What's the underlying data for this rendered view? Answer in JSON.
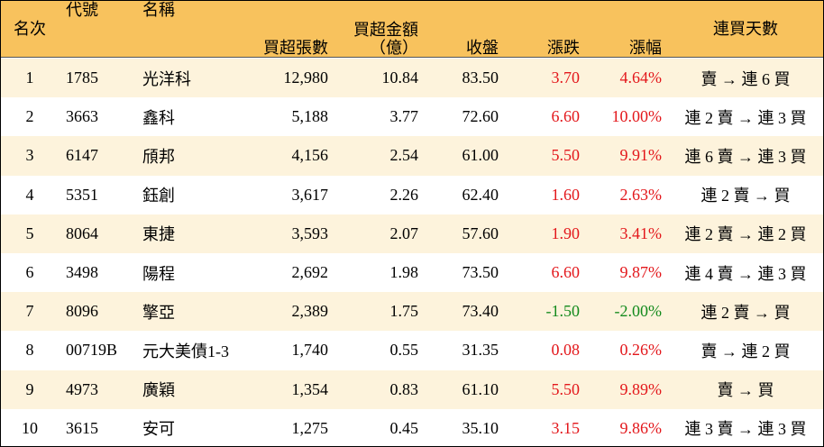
{
  "table": {
    "header": [
      "名次",
      "代號",
      "名稱",
      "買超張數",
      [
        "買超金額",
        "（億）"
      ],
      "收盤",
      "漲跌",
      "漲幅",
      "連買天數"
    ],
    "rows": [
      [
        "1",
        "1785",
        "光洋科",
        "12,980",
        "10.84",
        "83.50",
        "3.70",
        "4.64%",
        "賣 → 連 6 買"
      ],
      [
        "2",
        "3663",
        "鑫科",
        "5,188",
        "3.77",
        "72.60",
        "6.60",
        "10.00%",
        "連 2 賣 → 連 3 買"
      ],
      [
        "3",
        "6147",
        "頎邦",
        "4,156",
        "2.54",
        "61.00",
        "5.50",
        "9.91%",
        "連 6 賣 → 連 3 買"
      ],
      [
        "4",
        "5351",
        "鈺創",
        "3,617",
        "2.26",
        "62.40",
        "1.60",
        "2.63%",
        "連 2 賣 → 買"
      ],
      [
        "5",
        "8064",
        "東捷",
        "3,593",
        "2.07",
        "57.60",
        "1.90",
        "3.41%",
        "連 2 賣 → 連 2 買"
      ],
      [
        "6",
        "3498",
        "陽程",
        "2,692",
        "1.98",
        "73.50",
        "6.60",
        "9.87%",
        "連 4 賣 → 連 3 買"
      ],
      [
        "7",
        "8096",
        "擎亞",
        "2,389",
        "1.75",
        "73.40",
        "-1.50",
        "-2.00%",
        "連 2 賣 → 買"
      ],
      [
        "8",
        "00719B",
        "元大美債1-3",
        "1,740",
        "0.55",
        "31.35",
        "0.08",
        "0.26%",
        "賣 → 連 2 買"
      ],
      [
        "9",
        "4973",
        "廣穎",
        "1,354",
        "0.83",
        "61.10",
        "5.50",
        "9.89%",
        "賣 → 買"
      ],
      [
        "10",
        "3615",
        "安可",
        "1,275",
        "0.45",
        "35.10",
        "3.15",
        "9.86%",
        "連 3 賣 → 連 3 買"
      ]
    ],
    "colors": {
      "header": "#f8c25d",
      "odd_row": "#fdf3dc",
      "even_row": "#ffffff",
      "up": "#e3171b",
      "down": "#138a1c"
    }
  }
}
